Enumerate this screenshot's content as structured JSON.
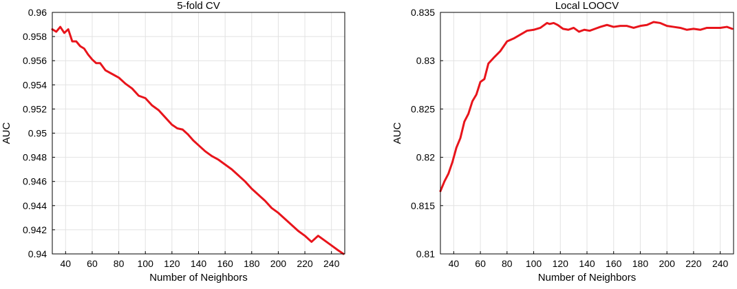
{
  "chart_data": [
    {
      "type": "line",
      "title": "5-fold  CV",
      "xlabel": "Number of Neighbors",
      "ylabel": "AUC",
      "xlim": [
        30,
        250
      ],
      "ylim": [
        0.94,
        0.96
      ],
      "xticks": [
        40,
        60,
        80,
        100,
        120,
        140,
        160,
        180,
        200,
        220,
        240
      ],
      "xtick_labels": [
        "40",
        "60",
        "80",
        "100",
        "120",
        "140",
        "160",
        "180",
        "200",
        "220",
        "240"
      ],
      "yticks": [
        0.94,
        0.942,
        0.944,
        0.946,
        0.948,
        0.95,
        0.952,
        0.954,
        0.956,
        0.958,
        0.96
      ],
      "ytick_labels": [
        "0.94",
        "0.942",
        "0.944",
        "0.946",
        "0.948",
        "0.95",
        "0.952",
        "0.954",
        "0.956",
        "0.958",
        "0.96"
      ],
      "grid": true,
      "color": "#e8141b",
      "series": [
        {
          "x": [
            30,
            33,
            36,
            39,
            42,
            45,
            48,
            51,
            54,
            57,
            60,
            63,
            66,
            70,
            75,
            80,
            85,
            90,
            95,
            100,
            105,
            110,
            115,
            120,
            124,
            128,
            132,
            136,
            140,
            145,
            150,
            155,
            160,
            165,
            170,
            175,
            180,
            185,
            190,
            195,
            200,
            205,
            210,
            215,
            220,
            225,
            230,
            235,
            240,
            245,
            249
          ],
          "values": [
            0.9586,
            0.9584,
            0.9588,
            0.9583,
            0.9586,
            0.9576,
            0.9576,
            0.9572,
            0.957,
            0.9565,
            0.9561,
            0.9558,
            0.9558,
            0.9552,
            0.9549,
            0.9546,
            0.9541,
            0.9537,
            0.9531,
            0.9529,
            0.9523,
            0.9519,
            0.9513,
            0.9507,
            0.9504,
            0.9503,
            0.9499,
            0.9494,
            0.949,
            0.9485,
            0.9481,
            0.9478,
            0.9474,
            0.947,
            0.9465,
            0.946,
            0.9454,
            0.9449,
            0.9444,
            0.9438,
            0.9434,
            0.9429,
            0.9424,
            0.9419,
            0.9415,
            0.941,
            0.9415,
            0.9411,
            0.9407,
            0.9403,
            0.94
          ]
        }
      ]
    },
    {
      "type": "line",
      "title": "Local LOOCV",
      "xlabel": "Number of Neighbors",
      "ylabel": "AUC",
      "xlim": [
        30,
        250
      ],
      "ylim": [
        0.81,
        0.835
      ],
      "xticks": [
        40,
        60,
        80,
        100,
        120,
        140,
        160,
        180,
        200,
        220,
        240
      ],
      "xtick_labels": [
        "40",
        "60",
        "80",
        "100",
        "120",
        "140",
        "160",
        "180",
        "200",
        "220",
        "240"
      ],
      "yticks": [
        0.81,
        0.815,
        0.82,
        0.825,
        0.83,
        0.835
      ],
      "ytick_labels": [
        "0.81",
        "0.815",
        "0.82",
        "0.825",
        "0.83",
        "0.835"
      ],
      "grid": true,
      "color": "#e8141b",
      "series": [
        {
          "x": [
            30,
            33,
            36,
            39,
            42,
            45,
            48,
            51,
            54,
            57,
            60,
            63,
            66,
            70,
            75,
            80,
            85,
            90,
            95,
            100,
            105,
            110,
            112,
            115,
            118,
            122,
            126,
            130,
            134,
            138,
            142,
            146,
            150,
            155,
            160,
            165,
            170,
            175,
            180,
            185,
            190,
            195,
            200,
            205,
            210,
            215,
            220,
            225,
            230,
            235,
            240,
            245,
            249
          ],
          "values": [
            0.8165,
            0.8175,
            0.8183,
            0.8195,
            0.821,
            0.822,
            0.8237,
            0.8245,
            0.8258,
            0.8265,
            0.8278,
            0.8281,
            0.8297,
            0.8303,
            0.831,
            0.832,
            0.8323,
            0.8327,
            0.8331,
            0.8332,
            0.8334,
            0.8339,
            0.8338,
            0.8339,
            0.8337,
            0.8333,
            0.8332,
            0.8334,
            0.833,
            0.8332,
            0.8331,
            0.8333,
            0.8335,
            0.8337,
            0.8335,
            0.8336,
            0.8336,
            0.8334,
            0.8336,
            0.8337,
            0.834,
            0.8339,
            0.8336,
            0.8335,
            0.8334,
            0.8332,
            0.8333,
            0.8332,
            0.8334,
            0.8334,
            0.8334,
            0.8335,
            0.8333
          ]
        }
      ]
    }
  ]
}
